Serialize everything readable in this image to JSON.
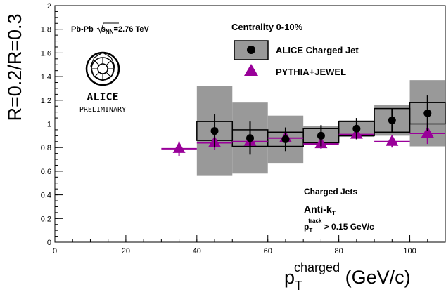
{
  "chart_data": {
    "type": "scatter",
    "xlabel": {
      "main": "p",
      "sub": "T",
      "sup": "charged",
      "unit": " (GeV/c)"
    },
    "ylabel": "R=0.2/R=0.3",
    "xlim": [
      0,
      110
    ],
    "ylim": [
      0,
      2
    ],
    "x_ticks": [
      0,
      20,
      40,
      60,
      80,
      100
    ],
    "y_ticks": [
      0,
      0.2,
      0.4,
      0.6,
      0.8,
      1,
      1.2,
      1.4,
      1.6,
      1.8,
      2
    ],
    "system_label": {
      "prefix": "Pb-Pb ",
      "sqrt": "s",
      "sub": "NN",
      "suffix": "=2.76 TeV"
    },
    "centrality_label": "Centrality 0-10%",
    "legend": {
      "alice": "ALICE Charged Jet",
      "pythia": "PYTHIA+JEWEL"
    },
    "logo": {
      "line1": "ALICE",
      "line2": "PRELIMINARY"
    },
    "annotations": {
      "jets": "Charged Jets",
      "algo_main": "Anti-k",
      "algo_sub": "T",
      "cut_main": "p",
      "cut_sub": "T",
      "cut_sup": "track",
      "cut_rest": " > 0.15 GeV/c"
    },
    "series": [
      {
        "name": "ALICE Charged Jet",
        "color": "#000000",
        "marker": "circle",
        "points": [
          {
            "x": 45,
            "xerr": 5,
            "y": 0.94,
            "stat": 0.14,
            "sys": 0.08,
            "shape": 0.38
          },
          {
            "x": 55,
            "xerr": 5,
            "y": 0.88,
            "stat": 0.14,
            "sys": 0.07,
            "shape": 0.3
          },
          {
            "x": 65,
            "xerr": 5,
            "y": 0.87,
            "stat": 0.1,
            "sys": 0.06,
            "shape": 0.2
          },
          {
            "x": 75,
            "xerr": 5,
            "y": 0.9,
            "stat": 0.09,
            "sys": 0.06,
            "shape": 0.08
          },
          {
            "x": 85,
            "xerr": 5,
            "y": 0.96,
            "stat": 0.09,
            "sys": 0.06,
            "shape": 0.07
          },
          {
            "x": 95,
            "xerr": 5,
            "y": 1.03,
            "stat": 0.1,
            "sys": 0.1,
            "shape": 0.13
          },
          {
            "x": 105,
            "xerr": 5,
            "y": 1.09,
            "stat": 0.15,
            "sys": 0.09,
            "shape": 0.28
          }
        ]
      },
      {
        "name": "PYTHIA+JEWEL",
        "color": "#990099",
        "marker": "triangle",
        "points": [
          {
            "x": 35,
            "xerr": 5,
            "y": 0.79,
            "err": 0.06
          },
          {
            "x": 45,
            "xerr": 5,
            "y": 0.84,
            "err": 0.06
          },
          {
            "x": 55,
            "xerr": 5,
            "y": 0.85,
            "err": 0.05
          },
          {
            "x": 65,
            "xerr": 5,
            "y": 0.88,
            "err": 0.05
          },
          {
            "x": 75,
            "xerr": 5,
            "y": 0.83,
            "err": 0.04
          },
          {
            "x": 85,
            "xerr": 5,
            "y": 0.91,
            "err": 0.04
          },
          {
            "x": 95,
            "xerr": 5,
            "y": 0.85,
            "err": 0.05
          },
          {
            "x": 105,
            "xerr": 5,
            "y": 0.92,
            "err": 0.09
          }
        ]
      }
    ]
  }
}
